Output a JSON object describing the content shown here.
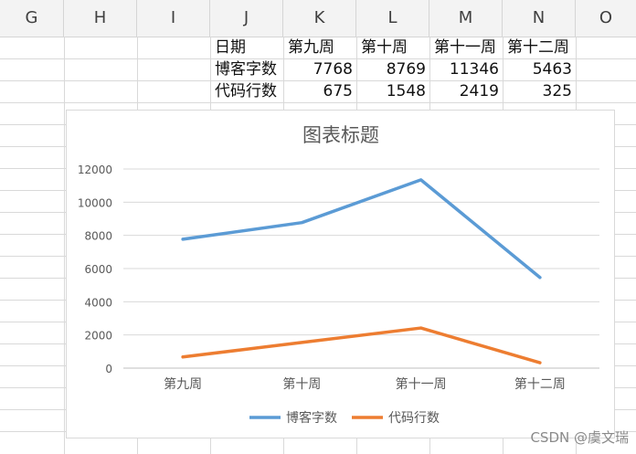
{
  "column_headers": [
    "G",
    "H",
    "I",
    "J",
    "K",
    "L",
    "M",
    "N",
    "O"
  ],
  "table": {
    "header": [
      "日期",
      "第九周",
      "第十周",
      "第十一周",
      "第十二周"
    ],
    "rows": [
      {
        "label": "博客字数",
        "values": [
          "7768",
          "8769",
          "11346",
          "5463"
        ]
      },
      {
        "label": "代码行数",
        "values": [
          "675",
          "1548",
          "2419",
          "325"
        ]
      }
    ]
  },
  "chart_data": {
    "type": "line",
    "title": "图表标题",
    "categories": [
      "第九周",
      "第十周",
      "第十一周",
      "第十二周"
    ],
    "series": [
      {
        "name": "博客字数",
        "values": [
          7768,
          8769,
          11346,
          5463
        ],
        "color": "#5b9bd5"
      },
      {
        "name": "代码行数",
        "values": [
          675,
          1548,
          2419,
          325
        ],
        "color": "#ed7d31"
      }
    ],
    "yticks": [
      "0",
      "2000",
      "4000",
      "6000",
      "8000",
      "10000",
      "12000"
    ],
    "ylim": [
      0,
      12000
    ],
    "grid": true,
    "legend_position": "bottom"
  },
  "watermark": "CSDN @虞文瑞"
}
